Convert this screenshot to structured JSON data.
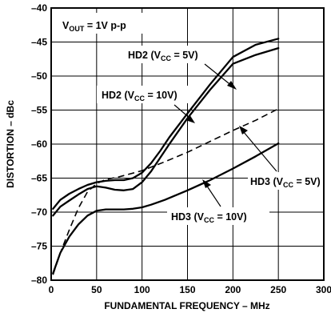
{
  "chart_data": {
    "type": "line",
    "xlabel": "FUNDAMENTAL FREQUENCY – MHz",
    "ylabel": "DISTORTION – dBc",
    "xlim": [
      0,
      300
    ],
    "ylim": [
      -80,
      -40
    ],
    "x_ticks": [
      "0",
      "50",
      "100",
      "150",
      "200",
      "250",
      "300"
    ],
    "y_ticks": [
      "–40",
      "–45",
      "–50",
      "–55",
      "–60",
      "–65",
      "–70",
      "–75",
      "–80"
    ],
    "grid": true,
    "condition_label": {
      "main": "V",
      "sub": "OUT",
      "rest": " = 1V p-p"
    },
    "series": [
      {
        "name": "HD2 (VCC = 5V)",
        "label": {
          "pre": "HD2 (V",
          "sub": "CC",
          "post": " = 5V)"
        },
        "style": "solid",
        "x": [
          2,
          10,
          20,
          30,
          40,
          50,
          60,
          70,
          80,
          90,
          100,
          110,
          120,
          130,
          150,
          175,
          200,
          225,
          250
        ],
        "y": [
          -69.5,
          -68.2,
          -67.3,
          -66.6,
          -66.0,
          -65.6,
          -65.4,
          -65.3,
          -65.3,
          -65.0,
          -64.2,
          -62.8,
          -61.0,
          -59.0,
          -55.5,
          -51.2,
          -47.2,
          -45.4,
          -44.5
        ]
      },
      {
        "name": "HD2 (VCC = 10V)",
        "label": {
          "pre": "HD2 (V",
          "sub": "CC",
          "post": " = 10V)"
        },
        "style": "solid",
        "x": [
          2,
          10,
          20,
          30,
          40,
          50,
          60,
          70,
          80,
          90,
          100,
          110,
          120,
          130,
          150,
          175,
          200,
          225,
          250
        ],
        "y": [
          -70.5,
          -69.2,
          -68.3,
          -67.4,
          -66.6,
          -66.2,
          -66.4,
          -66.7,
          -66.8,
          -66.6,
          -65.6,
          -64.0,
          -62.0,
          -60.0,
          -56.2,
          -52.0,
          -48.2,
          -46.9,
          -45.9
        ]
      },
      {
        "name": "HD3 (VCC = 5V)",
        "label": {
          "pre": "HD3 (V",
          "sub": "CC",
          "post": " = 5V)"
        },
        "style": "dashed",
        "x": [
          2,
          10,
          20,
          30,
          40,
          50,
          60,
          75,
          100,
          125,
          150,
          175,
          200,
          225,
          250
        ],
        "y": [
          -79.2,
          -76.0,
          -72.6,
          -69.4,
          -67.0,
          -65.8,
          -65.2,
          -64.8,
          -63.9,
          -62.6,
          -61.2,
          -59.6,
          -58.0,
          -56.5,
          -54.8
        ]
      },
      {
        "name": "HD3 (VCC = 10V)",
        "label": {
          "pre": "HD3 (V",
          "sub": "CC",
          "post": " = 10V)"
        },
        "style": "solid",
        "x": [
          2,
          10,
          20,
          30,
          40,
          50,
          60,
          70,
          80,
          90,
          100,
          110,
          125,
          150,
          175,
          200,
          225,
          250
        ],
        "y": [
          -79.0,
          -76.0,
          -73.6,
          -71.8,
          -70.5,
          -69.8,
          -69.6,
          -69.6,
          -69.6,
          -69.5,
          -69.3,
          -68.9,
          -68.2,
          -66.8,
          -65.3,
          -63.6,
          -61.8,
          -59.9
        ]
      }
    ]
  }
}
